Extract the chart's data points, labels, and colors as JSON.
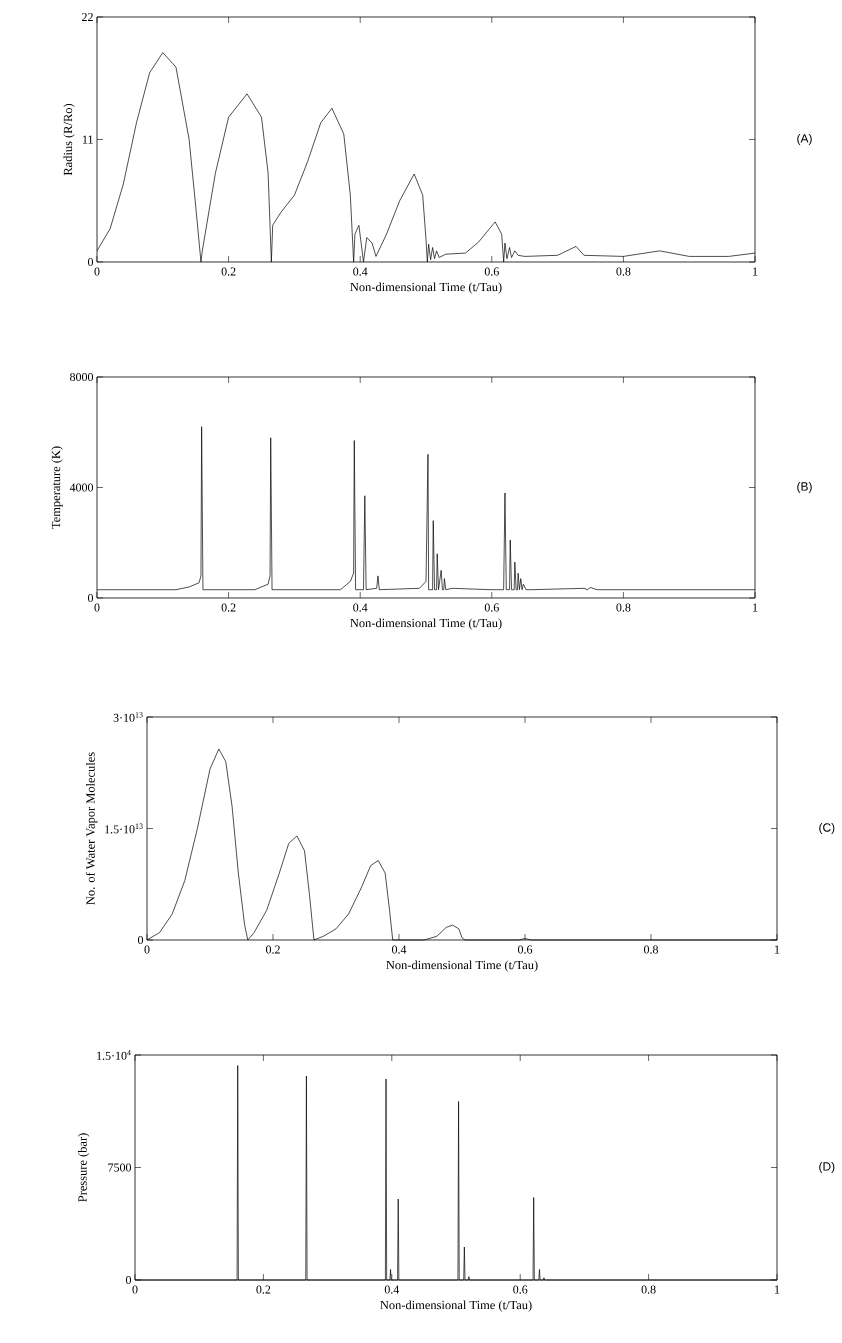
{
  "chart_data": [
    {
      "type": "line",
      "xlabel": "Non-dimensional Time (t/Tau)",
      "ylabel": "Radius (R/Ro)",
      "annotations": [
        "(A)"
      ],
      "color": "#000000",
      "xlim": [
        0,
        1
      ],
      "ylim": [
        0,
        22
      ],
      "xticks": [
        0,
        0.2,
        0.4,
        0.6,
        0.8,
        1
      ],
      "yticks": [
        0,
        11,
        22
      ],
      "x": [
        0,
        0.02,
        0.04,
        0.06,
        0.08,
        0.1,
        0.12,
        0.14,
        0.15,
        0.158,
        0.16,
        0.18,
        0.2,
        0.228,
        0.25,
        0.26,
        0.265,
        0.267,
        0.28,
        0.3,
        0.32,
        0.34,
        0.357,
        0.375,
        0.385,
        0.39,
        0.392,
        0.398,
        0.405,
        0.41,
        0.418,
        0.424,
        0.44,
        0.46,
        0.482,
        0.495,
        0.5,
        0.502,
        0.504,
        0.507,
        0.51,
        0.513,
        0.516,
        0.52,
        0.53,
        0.56,
        0.58,
        0.605,
        0.615,
        0.618,
        0.62,
        0.623,
        0.627,
        0.63,
        0.635,
        0.64,
        0.65,
        0.7,
        0.728,
        0.74,
        0.8,
        0.855,
        0.9,
        0.96,
        1
      ],
      "values": [
        1.0,
        3,
        7,
        12.5,
        17,
        18.8,
        17.5,
        11,
        5,
        0,
        1,
        8,
        13,
        15.1,
        13,
        8,
        0,
        3.3,
        4.5,
        6,
        9,
        12.5,
        13.8,
        11.5,
        6,
        0,
        2.5,
        3.3,
        0,
        2.2,
        1.7,
        0.5,
        2.5,
        5.5,
        7.9,
        6,
        2,
        0,
        1.6,
        0.2,
        1.3,
        0.3,
        1.0,
        0.4,
        0.7,
        0.8,
        1.8,
        3.6,
        2.5,
        0,
        1.7,
        0.3,
        1.3,
        0.4,
        1.0,
        0.6,
        0.5,
        0.6,
        1.4,
        0.6,
        0.5,
        1.0,
        0.5,
        0.5,
        0.8
      ]
    },
    {
      "type": "line",
      "xlabel": "Non-dimensional Time (t/Tau)",
      "ylabel": "Temperature (K)",
      "annotations": [
        "(B)"
      ],
      "color": "#000000",
      "xlim": [
        0,
        1
      ],
      "ylim": [
        0,
        8000
      ],
      "xticks": [
        0,
        0.2,
        0.4,
        0.6,
        0.8,
        1
      ],
      "yticks": [
        0,
        4000,
        8000
      ],
      "x": [
        0,
        0.12,
        0.14,
        0.155,
        0.158,
        0.159,
        0.161,
        0.24,
        0.26,
        0.263,
        0.264,
        0.266,
        0.37,
        0.385,
        0.39,
        0.391,
        0.393,
        0.405,
        0.407,
        0.409,
        0.425,
        0.427,
        0.429,
        0.49,
        0.5,
        0.503,
        0.504,
        0.506,
        0.51,
        0.511,
        0.513,
        0.516,
        0.517,
        0.519,
        0.523,
        0.525,
        0.527,
        0.528,
        0.53,
        0.54,
        0.6,
        0.618,
        0.62,
        0.622,
        0.627,
        0.628,
        0.63,
        0.634,
        0.635,
        0.637,
        0.639,
        0.64,
        0.642,
        0.644,
        0.646,
        0.648,
        0.652,
        0.66,
        0.74,
        0.745,
        0.75,
        0.76,
        1
      ],
      "values": [
        300,
        300,
        400,
        550,
        800,
        6200,
        300,
        300,
        500,
        800,
        5800,
        300,
        300,
        600,
        900,
        5700,
        300,
        300,
        3700,
        300,
        350,
        800,
        300,
        350,
        600,
        5200,
        300,
        300,
        300,
        2800,
        300,
        300,
        1600,
        300,
        1000,
        300,
        300,
        700,
        300,
        350,
        300,
        300,
        3800,
        300,
        300,
        2100,
        300,
        300,
        1300,
        300,
        300,
        900,
        300,
        700,
        300,
        500,
        300,
        300,
        350,
        300,
        380,
        300,
        300
      ]
    },
    {
      "type": "line",
      "xlabel": "Non-dimensional Time (t/Tau)",
      "ylabel": "No. of Water Vapor Molecules",
      "annotations": [
        "(C)"
      ],
      "color": "#000000",
      "xlim": [
        0,
        1
      ],
      "ylim": [
        0,
        30000000000000.0
      ],
      "xticks": [
        0,
        0.2,
        0.4,
        0.6,
        0.8,
        1
      ],
      "yticks": [
        0,
        {
          "value": 15000000000000.0,
          "label": "1.5·10$^{13}$"
        },
        {
          "value": 30000000000000.0,
          "label": "3·10$^{13}$"
        }
      ],
      "x": [
        0,
        0.02,
        0.04,
        0.06,
        0.08,
        0.1,
        0.114,
        0.125,
        0.135,
        0.145,
        0.155,
        0.16,
        0.17,
        0.19,
        0.21,
        0.225,
        0.238,
        0.25,
        0.258,
        0.265,
        0.28,
        0.3,
        0.32,
        0.34,
        0.355,
        0.367,
        0.378,
        0.385,
        0.39,
        0.44,
        0.46,
        0.475,
        0.485,
        0.495,
        0.5,
        0.505,
        0.59,
        0.6,
        0.61,
        1
      ],
      "values": [
        0,
        1000000000000.0,
        3500000000000.0,
        8000000000000.0,
        15000000000000.0,
        23000000000000.0,
        25700000000000.0,
        24000000000000.0,
        18000000000000.0,
        9000000000000.0,
        2000000000000.0,
        0,
        1000000000000.0,
        4000000000000.0,
        9000000000000.0,
        13000000000000.0,
        14000000000000.0,
        12000000000000.0,
        6000000000000.0,
        0,
        500000000000.0,
        1500000000000.0,
        3500000000000.0,
        7000000000000.0,
        10000000000000.0,
        10700000000000.0,
        9000000000000.0,
        4000000000000.0,
        0,
        0,
        500000000000.0,
        1700000000000.0,
        2000000000000.0,
        1500000000000.0,
        300000000000.0,
        0,
        0,
        200000000000.0,
        0,
        0
      ]
    },
    {
      "type": "line",
      "xlabel": "Non-dimensional Time (t/Tau)",
      "ylabel": "Pressure (bar)",
      "annotations": [
        "(D)"
      ],
      "color": "#000000",
      "xlim": [
        0,
        1
      ],
      "ylim": [
        0,
        15000
      ],
      "xticks": [
        0,
        0.2,
        0.4,
        0.6,
        0.8,
        1
      ],
      "yticks": [
        0,
        7500,
        {
          "value": 15000,
          "label": "1.5·10$^{4}$"
        }
      ],
      "x": [
        0,
        0.159,
        0.16,
        0.161,
        0.266,
        0.267,
        0.268,
        0.39,
        0.391,
        0.392,
        0.397,
        0.398,
        0.399,
        0.409,
        0.41,
        0.411,
        0.503,
        0.504,
        0.505,
        0.512,
        0.513,
        0.514,
        0.519,
        0.52,
        0.521,
        0.62,
        0.621,
        0.622,
        0.629,
        0.63,
        0.631,
        0.636,
        0.637,
        0.638,
        1
      ],
      "values": [
        0,
        0,
        14300,
        0,
        0,
        13600,
        0,
        0,
        13400,
        0,
        0,
        700,
        0,
        0,
        5400,
        0,
        0,
        11900,
        0,
        0,
        2200,
        0,
        0,
        230,
        0,
        0,
        5500,
        0,
        0,
        700,
        0,
        0,
        150,
        0,
        0
      ]
    }
  ]
}
